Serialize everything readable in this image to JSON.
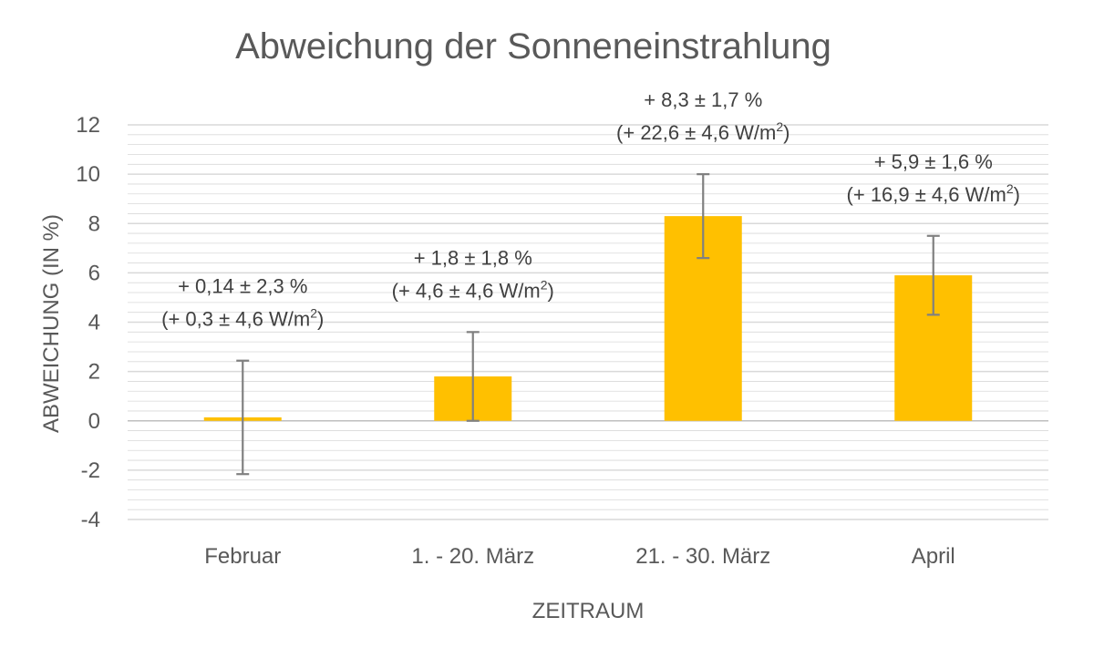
{
  "chart_data": {
    "type": "bar",
    "title": "Abweichung der Sonneneinstrahlung",
    "xlabel": "ZEITRAUM",
    "ylabel": "ABWEICHUNG (IN %)",
    "ylim": [
      -4,
      12
    ],
    "yticks": [
      -4,
      -2,
      0,
      2,
      4,
      6,
      8,
      10,
      12
    ],
    "grid": true,
    "categories": [
      "Februar",
      "1. - 20. März",
      "21. - 30. März",
      "April"
    ],
    "values": [
      0.14,
      1.8,
      8.3,
      5.9
    ],
    "errors": [
      2.3,
      1.8,
      1.7,
      1.6
    ],
    "annotations": [
      {
        "line1": "+ 0,14 ± 2,3 %",
        "line2_main": "(+ 0,3 ± 4,6 W/m",
        "line2_sup": "2",
        "line2_end": ")"
      },
      {
        "line1": "+ 1,8 ± 1,8 %",
        "line2_main": "(+ 4,6 ± 4,6 W/m",
        "line2_sup": "2",
        "line2_end": ")"
      },
      {
        "line1": "+ 8,3 ± 1,7 %",
        "line2_main": "(+ 22,6 ± 4,6 W/m",
        "line2_sup": "2",
        "line2_end": ")"
      },
      {
        "line1": "+ 5,9 ± 1,6 %",
        "line2_main": "(+ 16,9 ± 4,6 W/m",
        "line2_sup": "2",
        "line2_end": ")"
      }
    ],
    "colors": {
      "bar": "#FFC000",
      "error_bar": "#808080",
      "grid": "#D9D9D9",
      "text": "#595959"
    }
  }
}
